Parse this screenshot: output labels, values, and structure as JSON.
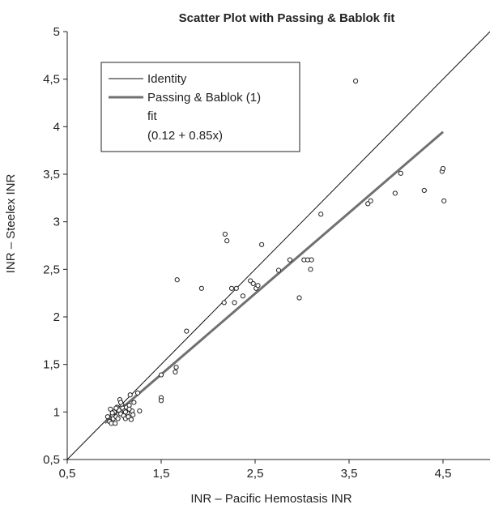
{
  "chart_data": {
    "type": "scatter",
    "title": "Scatter Plot with Passing & Bablok fit",
    "xlabel": "INR – Pacific Hemostasis INR",
    "ylabel": "INR – Steelex INR",
    "xlim": [
      0.5,
      5
    ],
    "ylim": [
      0.5,
      5
    ],
    "xticks": [
      "0,5",
      "1,5",
      "2,5",
      "3,5",
      "4,5"
    ],
    "yticks": [
      "0,5",
      "1",
      "1,5",
      "2",
      "2,5",
      "3",
      "3,5",
      "4",
      "4,5",
      "5"
    ],
    "grid": false,
    "legend_position": "top-left",
    "legend": {
      "identity_label": "Identity",
      "fit_label_line1": "Passing & Bablok (1)",
      "fit_label_line2": "fit",
      "fit_label_line3": "(0.12 + 0.85x)"
    },
    "lines": [
      {
        "name": "Identity",
        "kind": "identity",
        "color": "#111111",
        "x": [
          0.5,
          5
        ],
        "y": [
          0.5,
          5
        ]
      },
      {
        "name": "Passing & Bablok (1) fit",
        "kind": "fit",
        "intercept": 0.12,
        "slope": 0.85,
        "color": "#707070",
        "x": [
          0.9,
          4.5
        ],
        "y": [
          0.885,
          3.945
        ]
      }
    ],
    "points": [
      [
        0.93,
        0.95
      ],
      [
        0.95,
        0.9
      ],
      [
        0.96,
        1.03
      ],
      [
        0.97,
        0.88
      ],
      [
        0.98,
        0.97
      ],
      [
        0.99,
        0.93
      ],
      [
        1.0,
        1.0
      ],
      [
        1.01,
        0.88
      ],
      [
        1.02,
        0.95
      ],
      [
        1.03,
        1.05
      ],
      [
        1.04,
        0.93
      ],
      [
        1.05,
        1.02
      ],
      [
        1.06,
        1.13
      ],
      [
        1.07,
        0.98
      ],
      [
        1.08,
        1.08
      ],
      [
        1.09,
        1.04
      ],
      [
        1.1,
        0.96
      ],
      [
        1.11,
        1.01
      ],
      [
        1.12,
        0.93
      ],
      [
        1.13,
        1.05
      ],
      [
        1.14,
        0.99
      ],
      [
        1.15,
        0.95
      ],
      [
        1.16,
        1.07
      ],
      [
        1.17,
        1.18
      ],
      [
        1.18,
        0.92
      ],
      [
        1.19,
        1.01
      ],
      [
        1.2,
        0.97
      ],
      [
        1.21,
        1.1
      ],
      [
        1.25,
        1.2
      ],
      [
        1.27,
        1.01
      ],
      [
        1.02,
        1.04
      ],
      [
        1.07,
        1.1
      ],
      [
        1.12,
        1.0
      ],
      [
        1.16,
        1.03
      ],
      [
        0.98,
        0.99
      ],
      [
        1.5,
        1.39
      ],
      [
        1.5,
        1.15
      ],
      [
        1.5,
        1.12
      ],
      [
        1.65,
        1.42
      ],
      [
        1.66,
        1.47
      ],
      [
        1.67,
        2.39
      ],
      [
        1.77,
        1.85
      ],
      [
        1.93,
        2.3
      ],
      [
        2.17,
        2.15
      ],
      [
        2.18,
        2.87
      ],
      [
        2.2,
        2.8
      ],
      [
        2.25,
        2.3
      ],
      [
        2.28,
        2.15
      ],
      [
        2.3,
        2.3
      ],
      [
        2.37,
        2.22
      ],
      [
        2.45,
        2.38
      ],
      [
        2.48,
        2.35
      ],
      [
        2.51,
        2.3
      ],
      [
        2.53,
        2.33
      ],
      [
        2.57,
        2.76
      ],
      [
        2.75,
        2.49
      ],
      [
        2.87,
        2.6
      ],
      [
        2.97,
        2.2
      ],
      [
        3.02,
        2.6
      ],
      [
        3.06,
        2.6
      ],
      [
        3.09,
        2.5
      ],
      [
        3.1,
        2.6
      ],
      [
        3.2,
        3.08
      ],
      [
        3.57,
        4.48
      ],
      [
        3.7,
        3.19
      ],
      [
        3.73,
        3.22
      ],
      [
        3.99,
        3.3
      ],
      [
        4.05,
        3.51
      ],
      [
        4.3,
        3.33
      ],
      [
        4.49,
        3.53
      ],
      [
        4.5,
        3.56
      ],
      [
        4.51,
        3.22
      ]
    ]
  }
}
